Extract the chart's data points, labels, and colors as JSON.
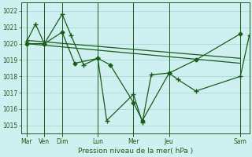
{
  "title": "Pression niveau de la mer( hPa )",
  "bg_color": "#cff0f0",
  "grid_color": "#aad8d4",
  "line_color": "#1a5c1a",
  "ylim": [
    1014.5,
    1022.5
  ],
  "yticks": [
    1015,
    1016,
    1017,
    1018,
    1019,
    1020,
    1021,
    1022
  ],
  "x_day_labels": [
    "Mar",
    "Ven",
    "Dim",
    "Lun",
    "Mer",
    "Jeu",
    "Sam"
  ],
  "x_day_positions": [
    0,
    1,
    2,
    4,
    6,
    8,
    12
  ],
  "xlim": [
    -0.3,
    12.5
  ],
  "series1_x": [
    0,
    0.5,
    1,
    2,
    2.5,
    3.2,
    4.0,
    4.5,
    6.0,
    6.5,
    7.0,
    8.0,
    8.5,
    9.5,
    12.0,
    12.5
  ],
  "series1_y": [
    1020.1,
    1021.2,
    1020.0,
    1021.8,
    1020.5,
    1018.7,
    1019.1,
    1015.3,
    1016.9,
    1015.2,
    1018.1,
    1018.2,
    1017.8,
    1017.1,
    1018.0,
    1020.5
  ],
  "series2_x": [
    0,
    1,
    2,
    2.7,
    4,
    4.7,
    6,
    6.5,
    8,
    9.5,
    12
  ],
  "series2_y": [
    1020.0,
    1020.0,
    1020.7,
    1018.8,
    1019.1,
    1018.7,
    1016.4,
    1015.3,
    1018.2,
    1019.0,
    1020.6
  ],
  "trend1_x": [
    0,
    12
  ],
  "trend1_y": [
    1020.2,
    1019.1
  ],
  "trend2_x": [
    0,
    12
  ],
  "trend2_y": [
    1020.0,
    1018.8
  ]
}
